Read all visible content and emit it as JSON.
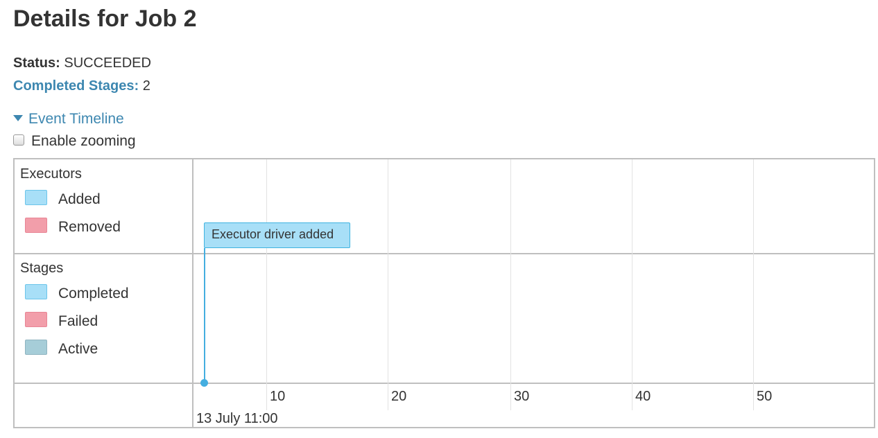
{
  "page": {
    "title": "Details for Job 2"
  },
  "summary": {
    "status_label": "Status:",
    "status_value": "SUCCEEDED",
    "completed_label": "Completed Stages:",
    "completed_value": "2"
  },
  "timeline": {
    "toggle_label": "Event Timeline",
    "zoom_label": "Enable zooming",
    "executors": {
      "label": "Executors",
      "legend": [
        {
          "label": "Added",
          "color": "#a8dff7",
          "border": "#6cc5ea"
        },
        {
          "label": "Removed",
          "color": "#f29eaa",
          "border": "#e88595"
        }
      ]
    },
    "stages": {
      "label": "Stages",
      "legend": [
        {
          "label": "Completed",
          "color": "#a8dff7",
          "border": "#6cc5ea"
        },
        {
          "label": "Failed",
          "color": "#f29eaa",
          "border": "#e88595"
        },
        {
          "label": "Active",
          "color": "#a6cdd8",
          "border": "#8fb4c0"
        }
      ]
    },
    "axis": {
      "ticks": [
        "10",
        "20",
        "30",
        "40",
        "50"
      ],
      "start_label": "13 July 11:00"
    },
    "event": {
      "label": "Executor driver added"
    }
  }
}
